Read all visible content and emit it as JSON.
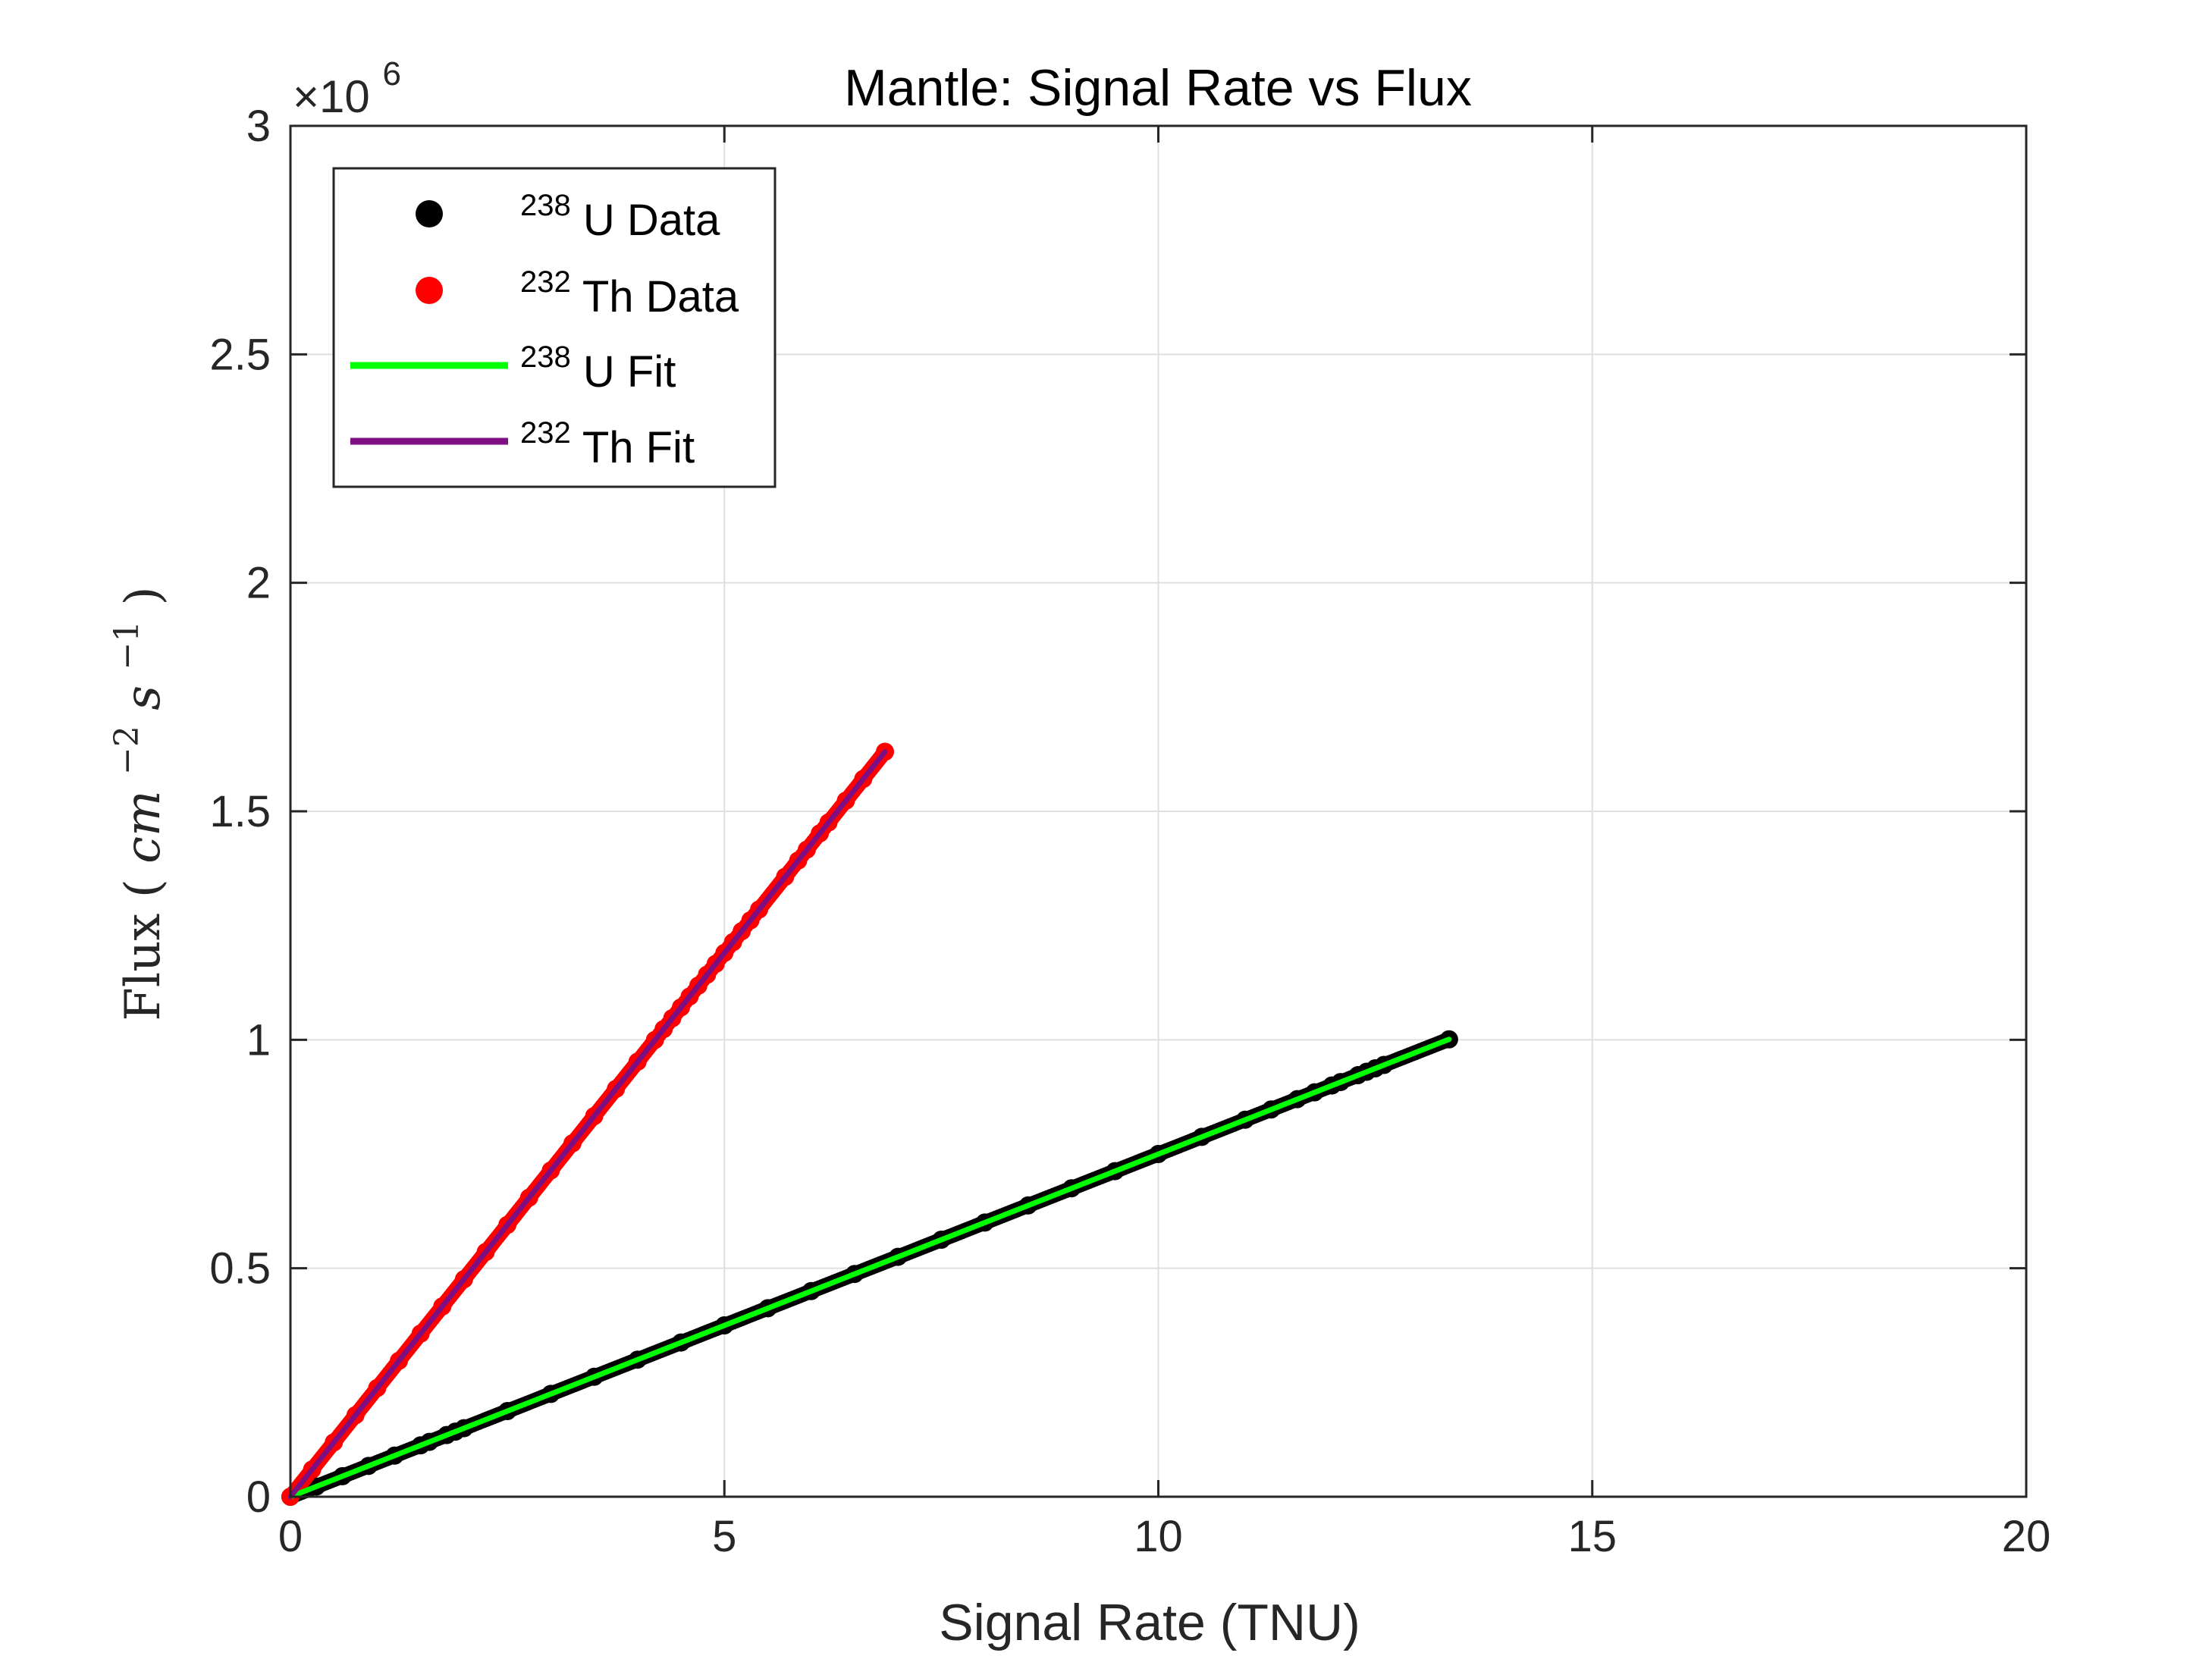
{
  "chart_data": {
    "type": "scatter",
    "title": "Mantle: Signal Rate vs Flux",
    "xlabel": "Signal Rate (TNU)",
    "ylabel": {
      "text": "Flux",
      "unit_base1": "cm",
      "unit_exp1": "−2",
      "unit_base2": "s",
      "unit_exp2": "−1"
    },
    "y_exponent": {
      "prefix": "×10",
      "power": "6"
    },
    "xlim": [
      0,
      20
    ],
    "ylim": [
      0,
      3000000
    ],
    "x_ticks": [
      0,
      5,
      10,
      15,
      20
    ],
    "y_ticks": [
      0,
      500000,
      1000000,
      1500000,
      2000000,
      2500000,
      3000000
    ],
    "x_tick_labels": [
      "0",
      "5",
      "10",
      "15",
      "20"
    ],
    "y_tick_labels": [
      "0",
      "0.5",
      "1",
      "1.5",
      "2",
      "2.5",
      "3"
    ],
    "grid": true,
    "legend_position": "top-left",
    "series": [
      {
        "name": "U Data",
        "isotope": "238",
        "kind": "scatter",
        "color": "#000000",
        "x": [
          0,
          0.3,
          0.6,
          0.9,
          1.2,
          1.5,
          1.6,
          1.8,
          1.9,
          2.0,
          2.5,
          3.0,
          3.5,
          4.0,
          4.5,
          5.0,
          5.5,
          6.0,
          6.5,
          7.0,
          7.5,
          8.0,
          8.5,
          9.0,
          9.5,
          10.0,
          10.5,
          11.0,
          11.3,
          11.6,
          11.8,
          12.0,
          12.1,
          12.3,
          12.4,
          12.5,
          12.6,
          13.35
        ],
        "y": [
          0,
          22500,
          45000,
          67500,
          90000,
          112500,
          120000,
          135000,
          142500,
          150000,
          187500,
          225000,
          262500,
          300000,
          337500,
          375000,
          412500,
          450000,
          487500,
          525000,
          562500,
          600000,
          637500,
          675000,
          712500,
          750000,
          787500,
          825000,
          847500,
          870000,
          885000,
          900000,
          907500,
          922500,
          930000,
          937500,
          945000,
          1001000
        ]
      },
      {
        "name": "Th Data",
        "isotope": "232",
        "kind": "scatter",
        "color": "#ff0000",
        "x": [
          0,
          0.25,
          0.5,
          0.75,
          1.0,
          1.25,
          1.5,
          1.75,
          2.0,
          2.25,
          2.5,
          2.75,
          3.0,
          3.25,
          3.5,
          3.75,
          4.0,
          4.2,
          4.3,
          4.4,
          4.5,
          4.6,
          4.7,
          4.8,
          4.9,
          5.0,
          5.1,
          5.2,
          5.3,
          5.4,
          5.7,
          5.85,
          5.95,
          6.1,
          6.2,
          6.4,
          6.6,
          6.85
        ],
        "y": [
          0,
          59500,
          119000,
          178500,
          238000,
          297500,
          357000,
          416500,
          476000,
          535500,
          595000,
          654500,
          714000,
          773500,
          833000,
          892500,
          952000,
          999600,
          1023400,
          1047200,
          1071000,
          1094800,
          1118600,
          1142400,
          1166200,
          1190000,
          1213800,
          1237600,
          1261400,
          1285200,
          1356600,
          1392300,
          1416100,
          1451800,
          1475600,
          1523200,
          1570800,
          1630300
        ]
      },
      {
        "name": "U Fit",
        "isotope": "238",
        "kind": "line",
        "color": "#00ff00",
        "x": [
          0,
          13.35
        ],
        "y": [
          0,
          1001000
        ]
      },
      {
        "name": "Th Fit",
        "isotope": "232",
        "kind": "line",
        "color": "#7e0e82",
        "x": [
          0,
          6.85
        ],
        "y": [
          0,
          1630300
        ]
      }
    ]
  }
}
